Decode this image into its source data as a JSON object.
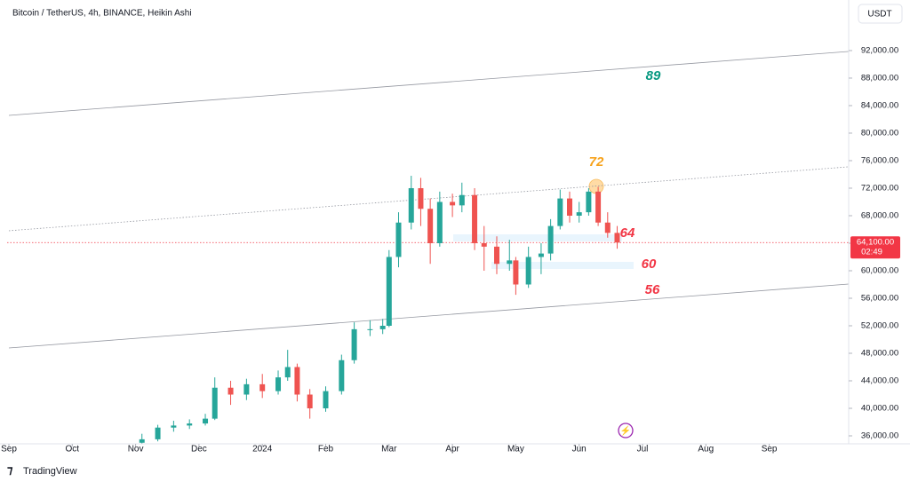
{
  "header": {
    "title": "Bitcoin / TetherUS, 4h, BINANCE, Heikin Ashi",
    "currency": "USDT"
  },
  "footer": {
    "brand": "TradingView"
  },
  "chart_data": {
    "type": "candlestick",
    "x": [
      2.1,
      2.35,
      2.6,
      2.85,
      3.1,
      3.25,
      3.5,
      3.75,
      4.0,
      4.25,
      4.4,
      4.55,
      4.75,
      5.0,
      5.25,
      5.45,
      5.7,
      5.9,
      6.0,
      6.15,
      6.35,
      6.5,
      6.65,
      6.8,
      7.0,
      7.15,
      7.35,
      7.5,
      7.7,
      7.9,
      8.0,
      8.2,
      8.4,
      8.55,
      8.7,
      8.85,
      9.0,
      9.15,
      9.3,
      9.45,
      9.6
    ],
    "ohlc": [
      [
        35000,
        36300,
        34900,
        35500
      ],
      [
        35500,
        37600,
        35200,
        37200
      ],
      [
        37200,
        38200,
        36600,
        37500
      ],
      [
        37500,
        38400,
        37000,
        37800
      ],
      [
        37800,
        39200,
        37500,
        38500
      ],
      [
        38500,
        44500,
        38300,
        43000
      ],
      [
        43000,
        44000,
        40500,
        42000
      ],
      [
        42000,
        44300,
        41200,
        43500
      ],
      [
        43500,
        45000,
        41500,
        42500
      ],
      [
        42500,
        45500,
        42000,
        44500
      ],
      [
        44500,
        48500,
        44000,
        46000
      ],
      [
        46000,
        46500,
        41000,
        42000
      ],
      [
        42000,
        42800,
        38500,
        40000
      ],
      [
        40000,
        43200,
        39500,
        42500
      ],
      [
        42500,
        47800,
        42000,
        47000
      ],
      [
        47000,
        52500,
        46500,
        51500
      ],
      [
        51500,
        52800,
        50500,
        51500
      ],
      [
        51500,
        53000,
        50800,
        52000
      ],
      [
        52000,
        63000,
        51800,
        62000
      ],
      [
        62000,
        68500,
        60500,
        67000
      ],
      [
        67000,
        73800,
        66000,
        72000
      ],
      [
        72000,
        73500,
        66500,
        69000
      ],
      [
        69000,
        70500,
        61000,
        64000
      ],
      [
        64000,
        71500,
        63500,
        70000
      ],
      [
        70000,
        71200,
        67800,
        69500
      ],
      [
        69500,
        72800,
        68500,
        71000
      ],
      [
        71000,
        72000,
        63000,
        64000
      ],
      [
        64000,
        66500,
        60000,
        63500
      ],
      [
        63500,
        65000,
        59500,
        61000
      ],
      [
        61000,
        64500,
        60000,
        61500
      ],
      [
        61500,
        62000,
        56500,
        58000
      ],
      [
        58000,
        63500,
        57500,
        62000
      ],
      [
        62000,
        64000,
        59500,
        62500
      ],
      [
        62500,
        67500,
        61500,
        66500
      ],
      [
        66500,
        71800,
        66000,
        70500
      ],
      [
        70500,
        71500,
        67000,
        68000
      ],
      [
        68000,
        70000,
        67000,
        68500
      ],
      [
        68500,
        72000,
        68000,
        71500
      ],
      [
        71500,
        72200,
        66500,
        67000
      ],
      [
        67000,
        68500,
        64800,
        65500
      ],
      [
        65500,
        66500,
        63200,
        64100
      ]
    ],
    "up_color": "#26a69a",
    "down_color": "#ef5350",
    "xlim": [
      0,
      13.25
    ],
    "xticks": [
      {
        "value": 0,
        "label": "Sep"
      },
      {
        "value": 1,
        "label": "Oct"
      },
      {
        "value": 2,
        "label": "Nov"
      },
      {
        "value": 3,
        "label": "Dec"
      },
      {
        "value": 4,
        "label": "2024"
      },
      {
        "value": 5,
        "label": "Feb"
      },
      {
        "value": 6,
        "label": "Mar"
      },
      {
        "value": 7,
        "label": "Apr"
      },
      {
        "value": 8,
        "label": "May"
      },
      {
        "value": 9,
        "label": "Jun"
      },
      {
        "value": 10,
        "label": "Jul"
      },
      {
        "value": 11,
        "label": "Aug"
      },
      {
        "value": 12,
        "label": "Sep"
      }
    ],
    "ylim": [
      34840,
      99350
    ],
    "yticks": [
      {
        "value": 36000,
        "label": "36,000.00"
      },
      {
        "value": 40000,
        "label": "40,000.00"
      },
      {
        "value": 44000,
        "label": "44,000.00"
      },
      {
        "value": 48000,
        "label": "48,000.00"
      },
      {
        "value": 52000,
        "label": "52,000.00"
      },
      {
        "value": 56000,
        "label": "56,000.00"
      },
      {
        "value": 60000,
        "label": "60,000.00"
      },
      {
        "value": 64000,
        "label": "64,000.00"
      },
      {
        "value": 68000,
        "label": "68,000.00"
      },
      {
        "value": 72000,
        "label": "72,000.00"
      },
      {
        "value": 76000,
        "label": "76,000.00"
      },
      {
        "value": 80000,
        "label": "80,000.00"
      },
      {
        "value": 84000,
        "label": "84,000.00"
      },
      {
        "value": 88000,
        "label": "88,000.00"
      },
      {
        "value": 92000,
        "label": "92,000.00"
      }
    ],
    "last_price": {
      "value": 64100,
      "label": "64,100.00"
    },
    "countdown": "02:49",
    "trendlines": [
      {
        "start": [
          0,
          82580
        ],
        "end": [
          13.25,
          91870
        ]
      },
      {
        "start": [
          0,
          65810
        ],
        "end": [
          13.25,
          75100
        ],
        "style": "dotted"
      },
      {
        "start": [
          0,
          48770
        ],
        "end": [
          13.25,
          58060
        ]
      }
    ],
    "annotations": [
      {
        "text": "89",
        "color": "#089981"
      },
      {
        "text": "72",
        "color": "#f7a21b"
      },
      {
        "text": "64",
        "color": "#f23645"
      },
      {
        "text": "60",
        "color": "#f23645"
      },
      {
        "text": "56",
        "color": "#f23645"
      }
    ]
  }
}
